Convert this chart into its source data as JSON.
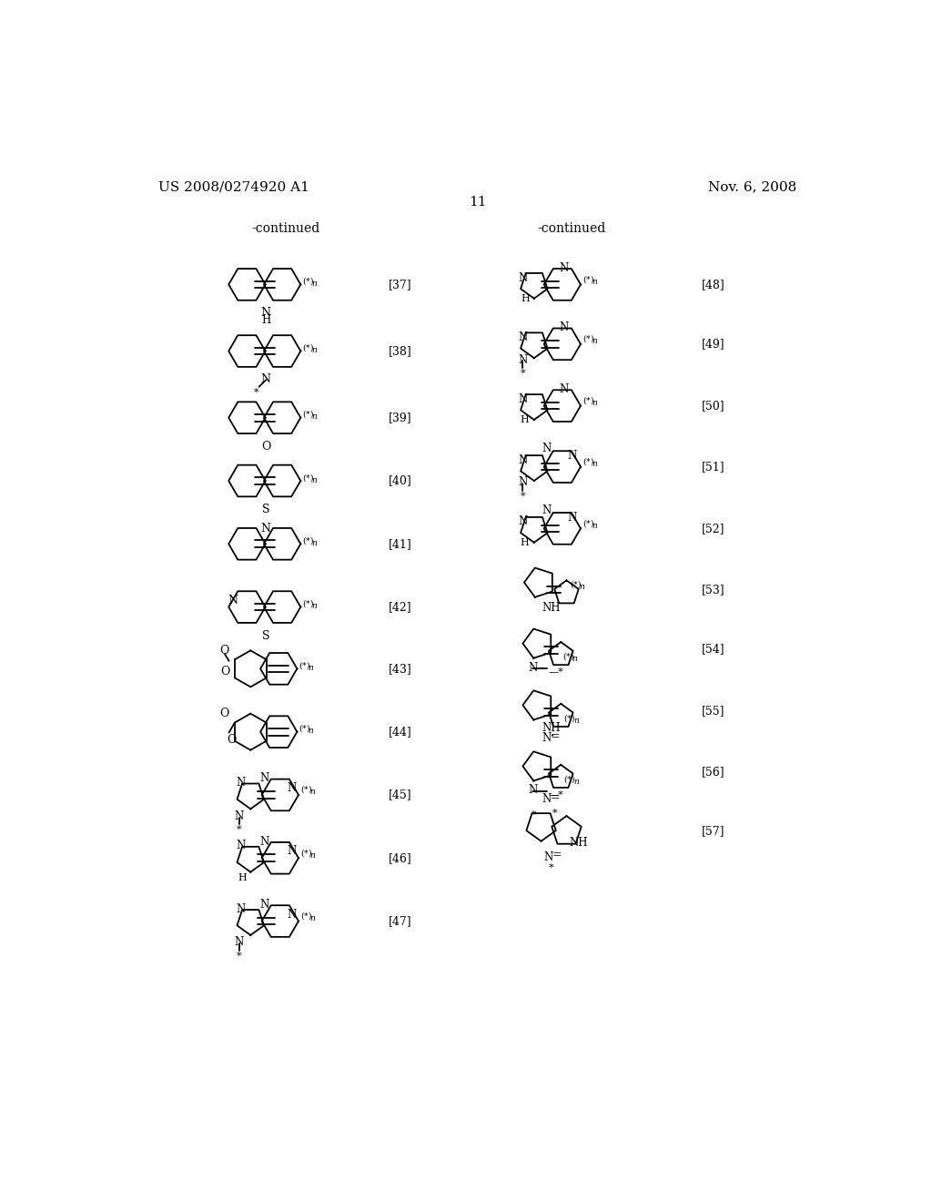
{
  "bg_color": "#ffffff",
  "header_left": "US 2008/0274920 A1",
  "header_right": "Nov. 6, 2008",
  "page_number": "11",
  "lw": 1.3
}
